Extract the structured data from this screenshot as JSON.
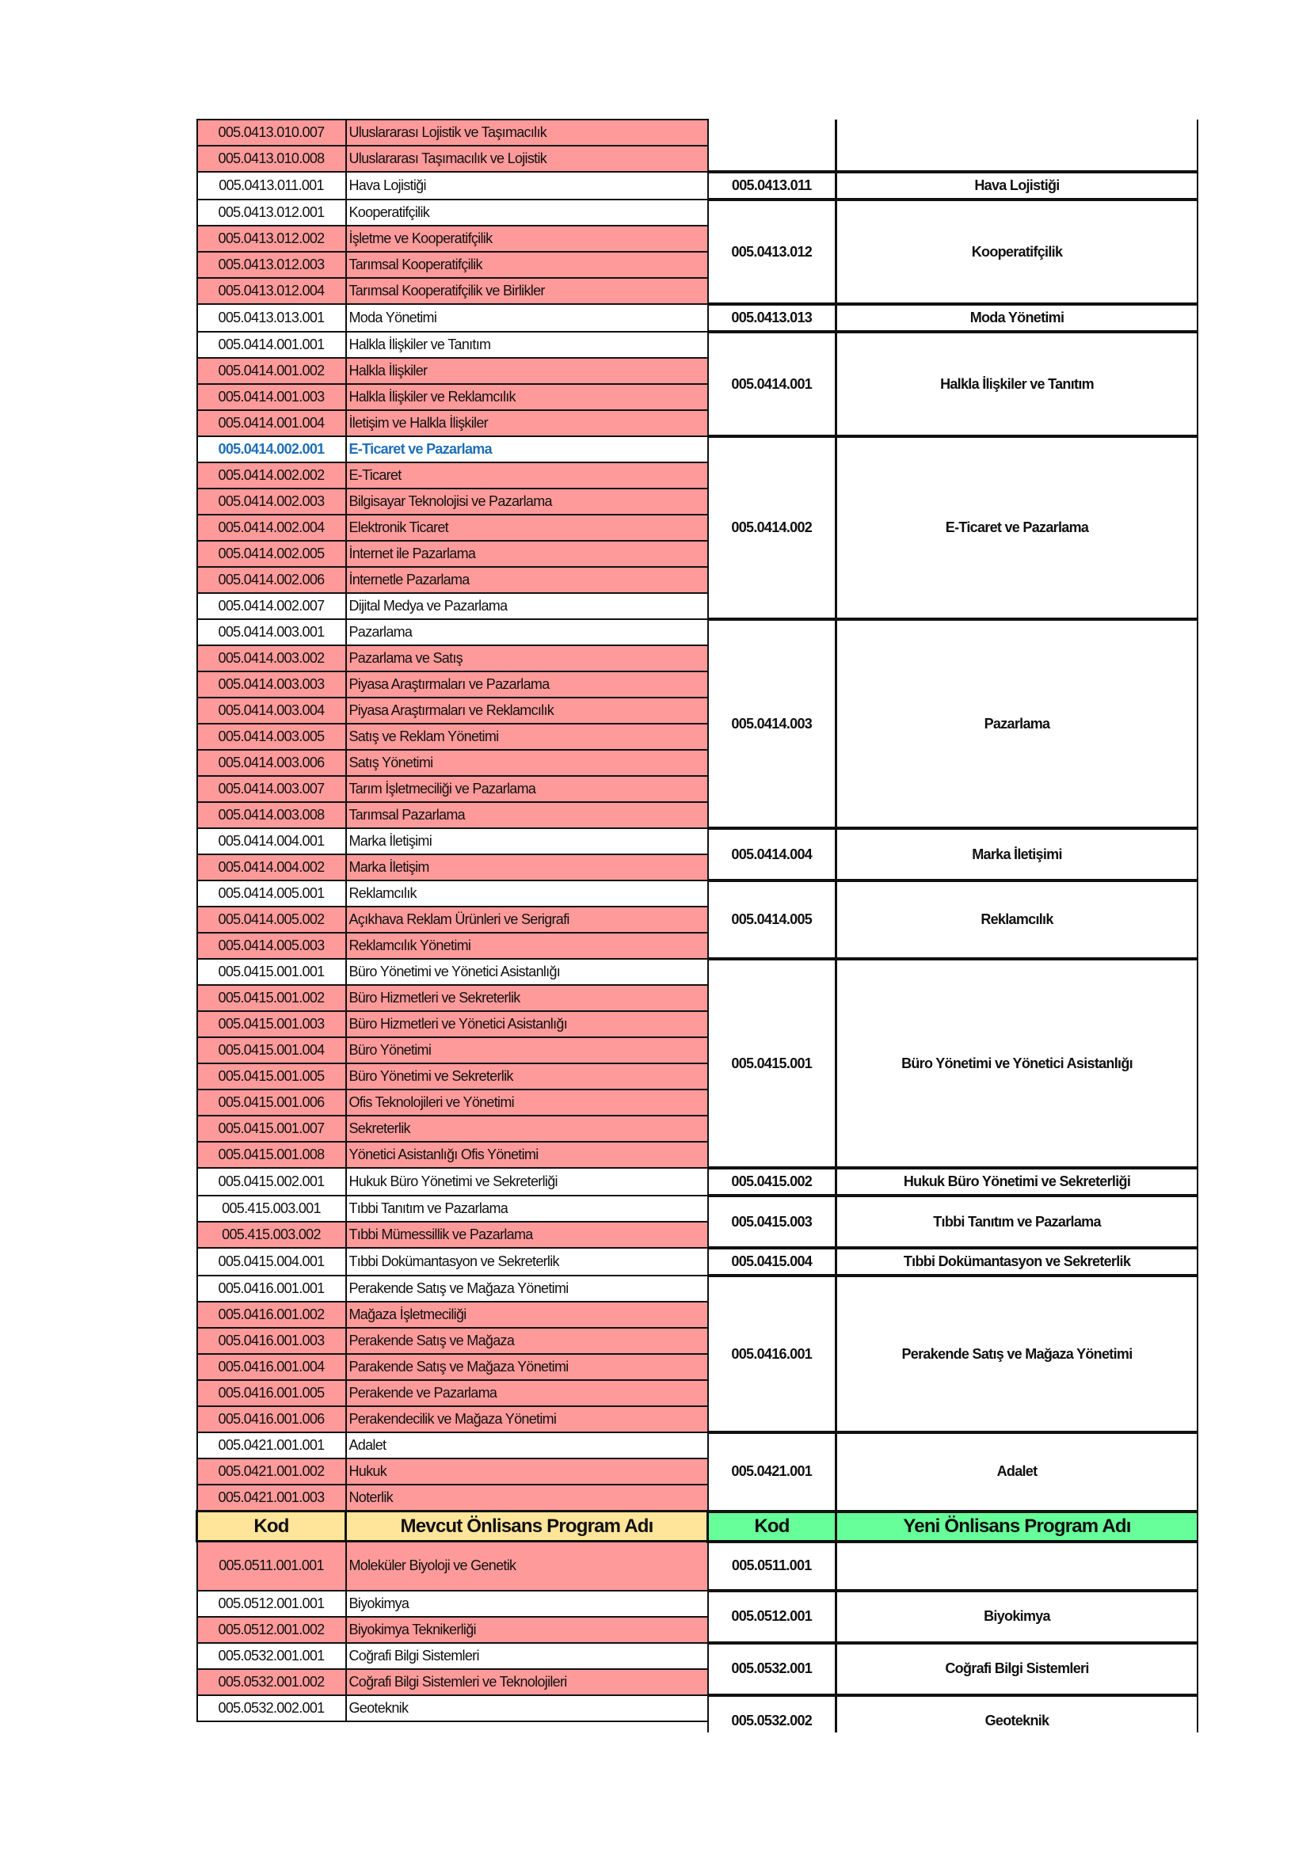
{
  "header": {
    "kod_left": "Kod",
    "mevcut": "Mevcut Önlisans Program Adı",
    "kod_right": "Kod",
    "yeni": "Yeni Önlisans Program Adı"
  },
  "colors": {
    "removed_row": "#ff9a9a",
    "header_current": "#ffe59a",
    "header_new": "#66ff99",
    "highlight_text": "#1f6fb8"
  },
  "groups_before_header": [
    {
      "code": "",
      "name": "",
      "continuation": true,
      "rows": [
        {
          "kod": "005.0413.010.007",
          "ad": "Uluslararası Lojistik ve Taşımacılık",
          "pink": true
        },
        {
          "kod": "005.0413.010.008",
          "ad": "Uluslararası Taşımacılık ve Lojistik",
          "pink": true
        }
      ]
    },
    {
      "code": "005.0413.011",
      "name": "Hava Lojistiği",
      "rows": [
        {
          "kod": "005.0413.011.001",
          "ad": "Hava Lojistiği"
        }
      ]
    },
    {
      "code": "005.0413.012",
      "name": "Kooperatifçilik",
      "rows": [
        {
          "kod": "005.0413.012.001",
          "ad": "Kooperatifçilik"
        },
        {
          "kod": "005.0413.012.002",
          "ad": "İşletme ve Kooperatifçilik",
          "pink": true
        },
        {
          "kod": "005.0413.012.003",
          "ad": "Tarımsal Kooperatifçilik",
          "pink": true
        },
        {
          "kod": "005.0413.012.004",
          "ad": "Tarımsal Kooperatifçilik ve Birlikler",
          "pink": true
        }
      ]
    },
    {
      "code": "005.0413.013",
      "name": "Moda Yönetimi",
      "rows": [
        {
          "kod": "005.0413.013.001",
          "ad": "Moda Yönetimi"
        }
      ]
    },
    {
      "code": "005.0414.001",
      "name": "Halkla İlişkiler ve Tanıtım",
      "rows": [
        {
          "kod": "005.0414.001.001",
          "ad": "Halkla İlişkiler ve Tanıtım"
        },
        {
          "kod": "005.0414.001.002",
          "ad": "Halkla İlişkiler",
          "pink": true
        },
        {
          "kod": "005.0414.001.003",
          "ad": "Halkla İlişkiler ve Reklamcılık",
          "pink": true
        },
        {
          "kod": "005.0414.001.004",
          "ad": "İletişim ve Halkla İlişkiler",
          "pink": true
        }
      ]
    },
    {
      "code": "005.0414.002",
      "name": "E-Ticaret ve Pazarlama",
      "rows": [
        {
          "kod": "005.0414.002.001",
          "ad": "E-Ticaret ve Pazarlama",
          "blue": true
        },
        {
          "kod": "005.0414.002.002",
          "ad": "E-Ticaret",
          "pink": true
        },
        {
          "kod": "005.0414.002.003",
          "ad": "Bilgisayar Teknolojisi ve Pazarlama",
          "pink": true
        },
        {
          "kod": "005.0414.002.004",
          "ad": "Elektronik Ticaret",
          "pink": true
        },
        {
          "kod": "005.0414.002.005",
          "ad": "İnternet ile Pazarlama",
          "pink": true
        },
        {
          "kod": "005.0414.002.006",
          "ad": "İnternetle Pazarlama",
          "pink": true
        },
        {
          "kod": "005.0414.002.007",
          "ad": "Dijital Medya ve Pazarlama"
        }
      ]
    },
    {
      "code": "005.0414.003",
      "name": "Pazarlama",
      "rows": [
        {
          "kod": "005.0414.003.001",
          "ad": "Pazarlama"
        },
        {
          "kod": "005.0414.003.002",
          "ad": "Pazarlama ve Satış",
          "pink": true
        },
        {
          "kod": "005.0414.003.003",
          "ad": "Piyasa Araştırmaları ve Pazarlama",
          "pink": true
        },
        {
          "kod": "005.0414.003.004",
          "ad": "Piyasa Araştırmaları ve Reklamcılık",
          "pink": true
        },
        {
          "kod": "005.0414.003.005",
          "ad": "Satış ve Reklam Yönetimi",
          "pink": true
        },
        {
          "kod": "005.0414.003.006",
          "ad": "Satış Yönetimi",
          "pink": true
        },
        {
          "kod": "005.0414.003.007",
          "ad": "Tarım İşletmeciliği ve Pazarlama",
          "pink": true
        },
        {
          "kod": "005.0414.003.008",
          "ad": "Tarımsal Pazarlama",
          "pink": true
        }
      ]
    },
    {
      "code": "005.0414.004",
      "name": "Marka İletişimi",
      "rows": [
        {
          "kod": "005.0414.004.001",
          "ad": "Marka İletişimi"
        },
        {
          "kod": "005.0414.004.002",
          "ad": "Marka İletişim",
          "pink": true
        }
      ]
    },
    {
      "code": "005.0414.005",
      "name": "Reklamcılık",
      "rows": [
        {
          "kod": "005.0414.005.001",
          "ad": "Reklamcılık"
        },
        {
          "kod": "005.0414.005.002",
          "ad": "Açıkhava Reklam Ürünleri ve Serigrafi",
          "pink": true
        },
        {
          "kod": "005.0414.005.003",
          "ad": "Reklamcılık Yönetimi",
          "pink": true
        }
      ]
    },
    {
      "code": "005.0415.001",
      "name": "Büro Yönetimi ve Yönetici Asistanlığı",
      "rows": [
        {
          "kod": "005.0415.001.001",
          "ad": "Büro Yönetimi ve Yönetici Asistanlığı"
        },
        {
          "kod": "005.0415.001.002",
          "ad": "Büro Hizmetleri ve Sekreterlik",
          "pink": true
        },
        {
          "kod": "005.0415.001.003",
          "ad": "Büro Hizmetleri ve Yönetici Asistanlığı",
          "pink": true
        },
        {
          "kod": "005.0415.001.004",
          "ad": "Büro Yönetimi",
          "pink": true
        },
        {
          "kod": "005.0415.001.005",
          "ad": "Büro Yönetimi ve Sekreterlik",
          "pink": true
        },
        {
          "kod": "005.0415.001.006",
          "ad": "Ofis Teknolojileri ve Yönetimi",
          "pink": true
        },
        {
          "kod": "005.0415.001.007",
          "ad": "Sekreterlik",
          "pink": true
        },
        {
          "kod": "005.0415.001.008",
          "ad": "Yönetici Asistanlığı Ofis Yönetimi",
          "pink": true
        }
      ]
    },
    {
      "code": "005.0415.002",
      "name": "Hukuk Büro Yönetimi ve Sekreterliği",
      "rows": [
        {
          "kod": "005.0415.002.001",
          "ad": "Hukuk Büro Yönetimi ve Sekreterliği"
        }
      ]
    },
    {
      "code": "005.0415.003",
      "name": "Tıbbi Tanıtım ve Pazarlama",
      "rows": [
        {
          "kod": "005.415.003.001",
          "ad": "Tıbbi Tanıtım ve Pazarlama"
        },
        {
          "kod": "005.415.003.002",
          "ad": "Tıbbi Mümessillik ve Pazarlama",
          "pink": true
        }
      ]
    },
    {
      "code": "005.0415.004",
      "name": "Tıbbi Dokümantasyon ve Sekreterlik",
      "rows": [
        {
          "kod": "005.0415.004.001",
          "ad": "Tıbbi Dokümantasyon ve Sekreterlik"
        }
      ]
    },
    {
      "code": "005.0416.001",
      "name": "Perakende Satış ve Mağaza Yönetimi",
      "rows": [
        {
          "kod": "005.0416.001.001",
          "ad": "Perakende Satış ve Mağaza Yönetimi"
        },
        {
          "kod": "005.0416.001.002",
          "ad": "Mağaza İşletmeciliği",
          "pink": true
        },
        {
          "kod": "005.0416.001.003",
          "ad": "Perakende Satış ve Mağaza",
          "pink": true
        },
        {
          "kod": "005.0416.001.004",
          "ad": "Parakende Satış ve Mağaza Yönetimi",
          "pink": true
        },
        {
          "kod": "005.0416.001.005",
          "ad": "Perakende ve Pazarlama",
          "pink": true
        },
        {
          "kod": "005.0416.001.006",
          "ad": "Perakendecilik ve Mağaza Yönetimi",
          "pink": true
        }
      ]
    },
    {
      "code": "005.0421.001",
      "name": "Adalet",
      "rows": [
        {
          "kod": "005.0421.001.001",
          "ad": "Adalet"
        },
        {
          "kod": "005.0421.001.002",
          "ad": "Hukuk",
          "pink": true
        },
        {
          "kod": "005.0421.001.003",
          "ad": "Noterlik",
          "pink": true
        }
      ]
    }
  ],
  "groups_after_header": [
    {
      "code": "005.0511.001",
      "name": "",
      "tall": true,
      "rows": [
        {
          "kod": "005.0511.001.001",
          "ad": "Moleküler Biyoloji ve Genetik",
          "pink": true
        }
      ]
    },
    {
      "code": "005.0512.001",
      "name": "Biyokimya",
      "rows": [
        {
          "kod": "005.0512.001.001",
          "ad": "Biyokimya"
        },
        {
          "kod": "005.0512.001.002",
          "ad": "Biyokimya Teknikerliği",
          "pink": true
        }
      ]
    },
    {
      "code": "005.0532.001",
      "name": "Coğrafi Bilgi Sistemleri",
      "rows": [
        {
          "kod": "005.0532.001.001",
          "ad": "Coğrafi Bilgi Sistemleri"
        },
        {
          "kod": "005.0532.001.002",
          "ad": "Coğrafi Bilgi Sistemleri ve Teknolojileri",
          "pink": true
        }
      ]
    },
    {
      "code": "005.0532.002",
      "name": "Geoteknik",
      "rows": [
        {
          "kod": "005.0532.002.001",
          "ad": "Geoteknik"
        },
        {
          "kod": "",
          "ad": ""
        }
      ]
    }
  ]
}
